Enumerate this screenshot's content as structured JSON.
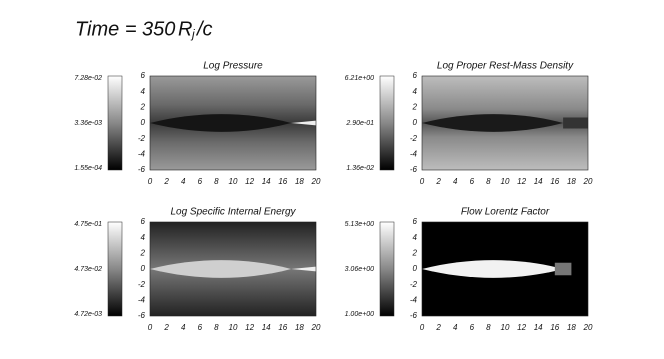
{
  "header": {
    "title": "Time =  350",
    "unit": "R",
    "unit_sub": "j",
    "unit_tail": "/c"
  },
  "axes": {
    "xticks": [
      "0",
      "2",
      "4",
      "6",
      "8",
      "10",
      "12",
      "14",
      "16",
      "18",
      "20"
    ],
    "yticks": [
      "6",
      "4",
      "2",
      "0",
      "-2",
      "-4",
      "-6"
    ]
  },
  "panels": [
    {
      "title": "Log Pressure",
      "colorbar_labels": [
        "7.28e-02",
        "3.36e-03",
        "1.55e-04"
      ]
    },
    {
      "title": "Log Proper Rest-Mass Density",
      "colorbar_labels": [
        "6.21e+00",
        "2.90e-01",
        "1.36e-02"
      ]
    },
    {
      "title": "Log Specific Internal Energy",
      "colorbar_labels": [
        "4.75e-01",
        "4.73e-02",
        "4.72e-03"
      ]
    },
    {
      "title": "Flow Lorentz Factor",
      "colorbar_labels": [
        "5.13e+00",
        "3.06e+00",
        "1.00e+00"
      ]
    }
  ]
}
